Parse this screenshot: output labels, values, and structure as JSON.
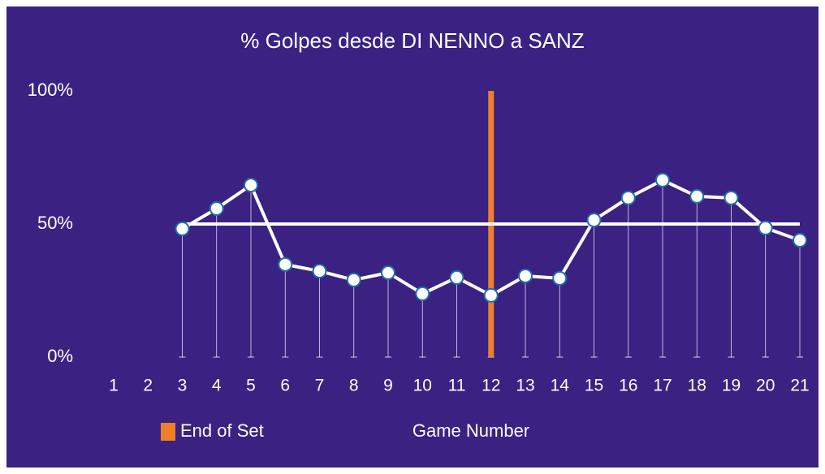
{
  "chart_data": {
    "type": "line",
    "title": "% Golpes desde DI NENNO a SANZ",
    "x_label": "Game Number",
    "categories": [
      "1",
      "2",
      "3",
      "4",
      "5",
      "6",
      "7",
      "8",
      "9",
      "10",
      "11",
      "12",
      "13",
      "14",
      "15",
      "16",
      "17",
      "18",
      "19",
      "20",
      "21"
    ],
    "values": [
      null,
      null,
      48.2,
      55.8,
      64.6,
      34.8,
      32.3,
      29,
      31.7,
      23.8,
      29.9,
      23.2,
      30.5,
      29.6,
      51.5,
      59.8,
      66.5,
      60.4,
      59.8,
      48.5,
      43.9
    ],
    "color": "#ffffff",
    "ylim": [
      0,
      100
    ],
    "yticks": [
      {
        "value": 0,
        "label": "0%"
      },
      {
        "value": 50,
        "label": "50%"
      },
      {
        "value": 100,
        "label": "100%"
      }
    ],
    "reference_line": {
      "value": 50,
      "color": "#ffffff"
    },
    "end_of_set": {
      "label": "End of Set",
      "category": "12",
      "color": "#f07f2a"
    }
  }
}
